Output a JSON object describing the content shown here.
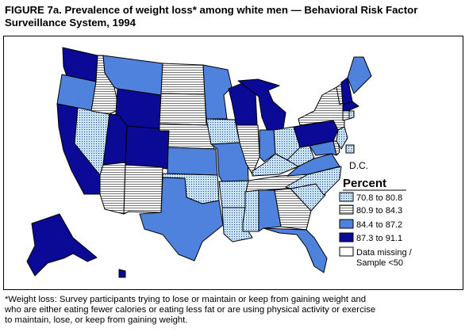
{
  "figure": {
    "title_line1": "FIGURE 7a. Prevalence of weight loss* among white men — Behavioral Risk Factor",
    "title_line2": "Surveillance System, 1994"
  },
  "map": {
    "dc_label": "D.C.",
    "legend": {
      "title": "Percent",
      "items": [
        {
          "label": "70.8 to 80.8",
          "pattern": "dots",
          "color": "#c8e2f6"
        },
        {
          "label": "80.9 to 84.3",
          "pattern": "hlines",
          "color": "#d2d2d2"
        },
        {
          "label": "84.4 to 87.2",
          "pattern": "solid",
          "color": "#4f82dc"
        },
        {
          "label": "87.3 to 91.1",
          "pattern": "solid",
          "color": "#0a0a96"
        },
        {
          "label_line1": "Data missing /",
          "label_line2": "Sample <50",
          "pattern": "none",
          "color": "#ffffff"
        }
      ]
    }
  },
  "footnote": {
    "line1": "*Weight loss: Survey participants trying to lose or maintain or keep from gaining weight and",
    "line2": "who are either eating fewer calories or eating less fat or are using physical activity or exercise",
    "line3": "to maintain, lose, or keep from gaining weight."
  }
}
